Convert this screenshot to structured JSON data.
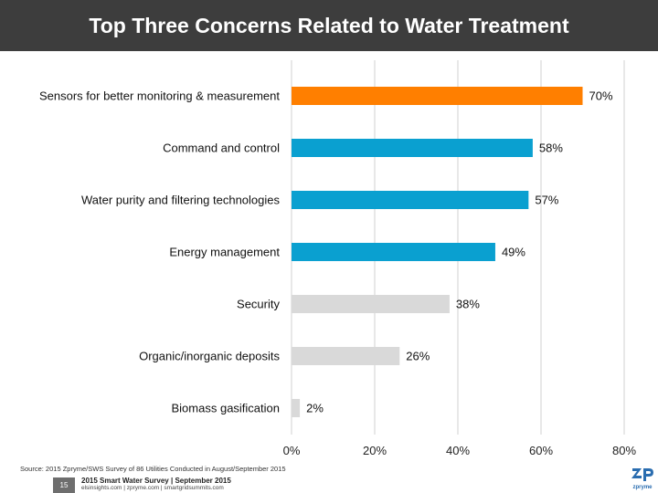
{
  "slide": {
    "title": "Top Three Concerns Related to Water Treatment",
    "source": "Source: 2015 Zpryme/SWS Survey of 86 Utilities Conducted in August/September 2015",
    "page_number": "15",
    "footer_title": "2015 Smart Water Survey | September 2015",
    "footer_links": "elsinsights.com | zpryme.com | smartgridsummits.com",
    "logo_text": "zpryme"
  },
  "colors": {
    "highlight": "#ff7f00",
    "top": "#0aa0d0",
    "other": "#d9d9d9",
    "title_bg": "#3d3d3d"
  },
  "chart_data": {
    "type": "bar",
    "orientation": "horizontal",
    "title": "Top Three Concerns Related to Water Treatment",
    "xlabel": "",
    "ylabel": "",
    "xlim": [
      0,
      80
    ],
    "xticks": [
      "0%",
      "20%",
      "40%",
      "60%",
      "80%"
    ],
    "grid": true,
    "categories": [
      "Sensors for better monitoring & measurement",
      "Command and control",
      "Water purity and filtering technologies",
      "Energy management",
      "Security",
      "Organic/inorganic deposits",
      "Biomass gasification"
    ],
    "values": [
      70,
      58,
      57,
      49,
      38,
      26,
      2
    ],
    "value_labels": [
      "70%",
      "58%",
      "57%",
      "49%",
      "38%",
      "26%",
      "2%"
    ],
    "bar_colors": [
      "highlight",
      "top",
      "top",
      "top",
      "other",
      "other",
      "other"
    ]
  }
}
